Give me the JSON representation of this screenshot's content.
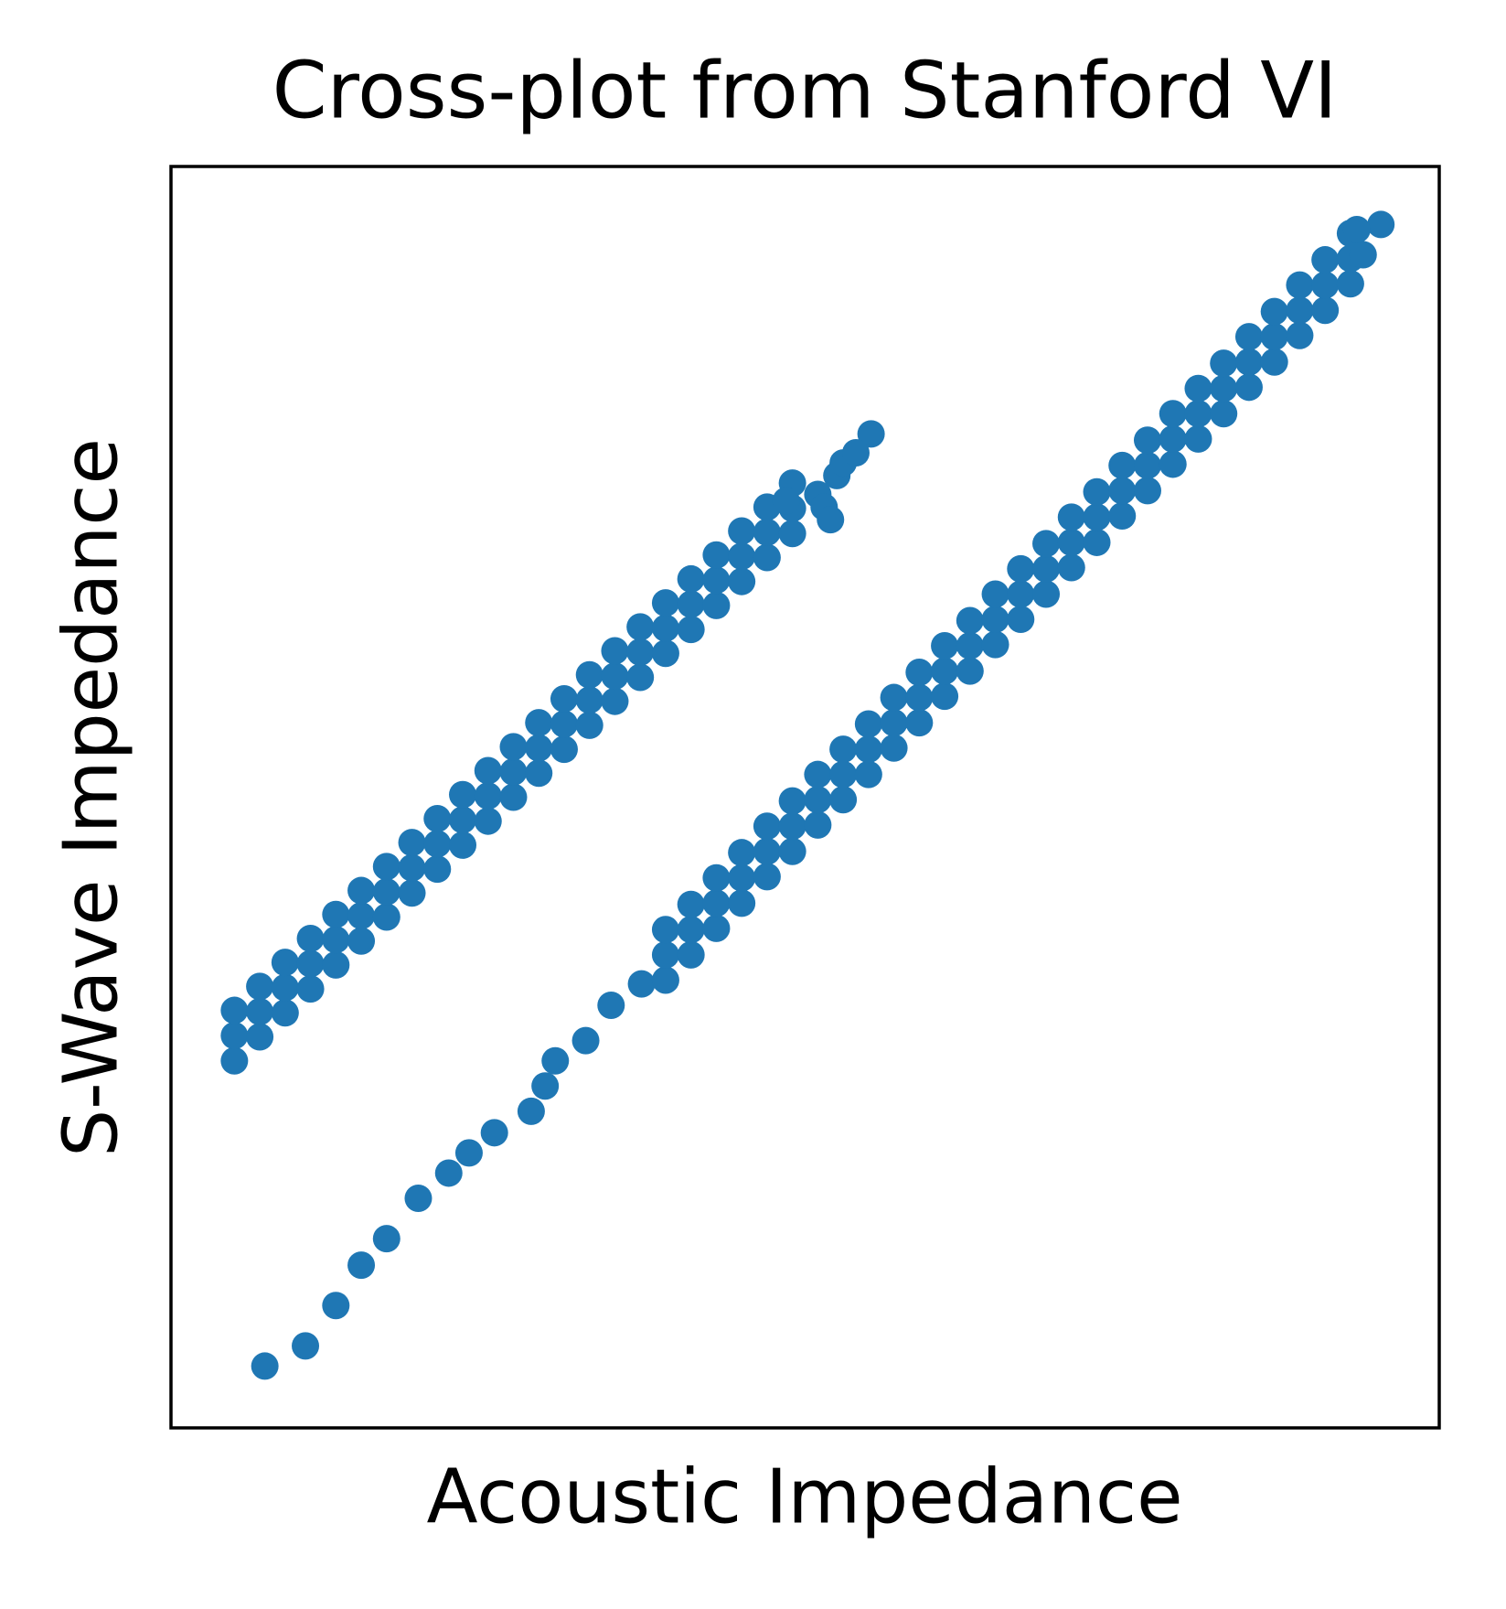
{
  "chart_data": {
    "type": "scatter",
    "title": "Cross-plot from Stanford VI",
    "xlabel": "Acoustic Impedance",
    "ylabel": "S-Wave Impedance",
    "color": "#1f77b4",
    "xlim": [
      0,
      100
    ],
    "ylim": [
      0,
      100
    ],
    "x": [
      5,
      5,
      5,
      7,
      7,
      7,
      9,
      9,
      9,
      11,
      11,
      11,
      13,
      13,
      13,
      15,
      15,
      15,
      17,
      17,
      17,
      19,
      19,
      19,
      21,
      21,
      21,
      23,
      23,
      23,
      25,
      25,
      25,
      27,
      27,
      27,
      29,
      29,
      29,
      31,
      31,
      31,
      33,
      33,
      33,
      35,
      35,
      35,
      37,
      37,
      37,
      39,
      39,
      39,
      41,
      41,
      41,
      43,
      43,
      43,
      45,
      45,
      45,
      47,
      47,
      47,
      49,
      49,
      49,
      51,
      52.5,
      51.5,
      53,
      55.2,
      54,
      52,
      48.5,
      7.4,
      10.6,
      13.0,
      15.0,
      17.0,
      19.5,
      21.9,
      23.5,
      25.5,
      28.4,
      29.5,
      30.3,
      32.7,
      34.7,
      37.1,
      39,
      39,
      39,
      41,
      41,
      41,
      43,
      43,
      43,
      45,
      45,
      45,
      47,
      47,
      47,
      49,
      49,
      49,
      51,
      51,
      51,
      53,
      53,
      53,
      55,
      55,
      55,
      57,
      57,
      57,
      59,
      59,
      59,
      61,
      61,
      61,
      63,
      63,
      63,
      65,
      65,
      65,
      67,
      67,
      67,
      69,
      69,
      69,
      71,
      71,
      71,
      73,
      73,
      73,
      75,
      75,
      75,
      77,
      77,
      77,
      79,
      79,
      79,
      81,
      81,
      81,
      83,
      83,
      83,
      85,
      85,
      85,
      87,
      87,
      87,
      89,
      89,
      89,
      91,
      91,
      91,
      93,
      93,
      93,
      95.4,
      94,
      93.5
    ],
    "y": [
      29.1,
      31.1,
      33.1,
      31.0,
      33.0,
      35.0,
      32.9,
      34.9,
      36.9,
      34.8,
      36.8,
      38.8,
      36.7,
      38.7,
      40.7,
      38.6,
      40.6,
      42.6,
      40.5,
      42.5,
      44.5,
      42.4,
      44.4,
      46.4,
      44.3,
      46.3,
      48.3,
      46.2,
      48.2,
      50.2,
      48.1,
      50.1,
      52.1,
      50.0,
      52.0,
      54.0,
      51.9,
      53.9,
      55.9,
      53.8,
      55.8,
      57.8,
      55.7,
      57.7,
      59.7,
      57.6,
      59.6,
      61.6,
      59.5,
      61.5,
      63.5,
      61.4,
      63.4,
      65.4,
      63.3,
      65.3,
      67.3,
      65.2,
      67.2,
      69.2,
      67.1,
      69.1,
      71.1,
      69.0,
      71.0,
      73.0,
      70.9,
      72.9,
      74.9,
      74.0,
      75.5,
      73.0,
      76.5,
      78.8,
      77.3,
      72,
      73.5,
      4.9,
      6.5,
      9.7,
      12.9,
      15.0,
      18.2,
      20.2,
      21.8,
      23.4,
      25.1,
      27.1,
      29.1,
      30.7,
      33.5,
      35.2,
      35.5,
      37.5,
      39.5,
      37.5,
      39.5,
      41.5,
      39.6,
      41.6,
      43.6,
      41.6,
      43.6,
      45.6,
      43.7,
      45.7,
      47.7,
      45.7,
      47.7,
      49.7,
      47.8,
      49.8,
      51.8,
      49.8,
      51.8,
      53.8,
      51.8,
      53.8,
      55.8,
      53.9,
      55.9,
      57.9,
      55.9,
      57.9,
      59.9,
      58.0,
      60.0,
      62.0,
      60.0,
      62.0,
      64.0,
      62.1,
      64.1,
      66.1,
      64.1,
      66.1,
      68.1,
      66.1,
      68.1,
      70.1,
      68.2,
      70.2,
      72.2,
      70.2,
      72.2,
      74.2,
      72.3,
      74.3,
      76.3,
      74.3,
      76.3,
      78.3,
      76.4,
      78.4,
      80.4,
      78.4,
      80.4,
      82.4,
      80.4,
      82.4,
      84.4,
      82.5,
      84.5,
      86.5,
      84.5,
      86.5,
      88.5,
      86.6,
      88.6,
      90.6,
      88.6,
      90.6,
      92.6,
      90.7,
      92.7,
      94.7,
      95.4,
      93,
      95
    ]
  }
}
